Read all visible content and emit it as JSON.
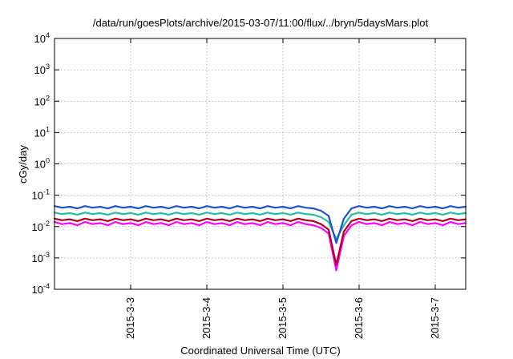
{
  "chart_data": {
    "type": "line",
    "title": "/data/run/goesPlots/archive/2015-03-07/11:00/flux/../bryn/5daysMars.plot",
    "xlabel": "Coordinated Universal Time (UTC)",
    "ylabel": "cGy/day",
    "y_scale": "log",
    "ylim": [
      0.0001,
      10000
    ],
    "xlim": [
      -1.0,
      4.4
    ],
    "grid": true,
    "x_ticks": [
      {
        "value": 0,
        "label": "2015-3-3"
      },
      {
        "value": 1,
        "label": "2015-3-4"
      },
      {
        "value": 2,
        "label": "2015-3-5"
      },
      {
        "value": 3,
        "label": "2015-3-6"
      },
      {
        "value": 4,
        "label": "2015-3-7"
      }
    ],
    "y_ticks": [
      {
        "value": 0.0001,
        "base": "10",
        "exp": "-4"
      },
      {
        "value": 0.001,
        "base": "10",
        "exp": "-3"
      },
      {
        "value": 0.01,
        "base": "10",
        "exp": "-2"
      },
      {
        "value": 0.1,
        "base": "10",
        "exp": "-1"
      },
      {
        "value": 1,
        "base": "10",
        "exp": "0"
      },
      {
        "value": 10,
        "base": "10",
        "exp": "1"
      },
      {
        "value": 100,
        "base": "10",
        "exp": "2"
      },
      {
        "value": 1000,
        "base": "10",
        "exp": "3"
      },
      {
        "value": 10000,
        "base": "10",
        "exp": "4"
      }
    ],
    "x": [
      -1.0,
      -0.9,
      -0.8,
      -0.7,
      -0.6,
      -0.5,
      -0.4,
      -0.3,
      -0.2,
      -0.1,
      0.0,
      0.1,
      0.2,
      0.3,
      0.4,
      0.5,
      0.6,
      0.7,
      0.8,
      0.9,
      1.0,
      1.1,
      1.2,
      1.3,
      1.4,
      1.5,
      1.6,
      1.7,
      1.8,
      1.9,
      2.0,
      2.1,
      2.2,
      2.3,
      2.4,
      2.5,
      2.6,
      2.7,
      2.8,
      2.9,
      3.0,
      3.1,
      3.2,
      3.3,
      3.4,
      3.5,
      3.6,
      3.7,
      3.8,
      3.9,
      4.0,
      4.1,
      4.2,
      4.3,
      4.4
    ],
    "series": [
      {
        "color": "#ff00ff",
        "values": [
          0.014,
          0.012,
          0.013,
          0.011,
          0.014,
          0.012,
          0.013,
          0.011,
          0.014,
          0.012,
          0.013,
          0.011,
          0.014,
          0.012,
          0.013,
          0.011,
          0.014,
          0.012,
          0.013,
          0.011,
          0.014,
          0.012,
          0.013,
          0.011,
          0.014,
          0.012,
          0.013,
          0.011,
          0.014,
          0.012,
          0.013,
          0.011,
          0.014,
          0.012,
          0.011,
          0.009,
          0.006,
          0.0004,
          0.005,
          0.011,
          0.014,
          0.012,
          0.013,
          0.011,
          0.014,
          0.012,
          0.013,
          0.011,
          0.014,
          0.012,
          0.013,
          0.011,
          0.014,
          0.012,
          0.013
        ]
      },
      {
        "color": "#b00020",
        "values": [
          0.018,
          0.016,
          0.017,
          0.015,
          0.018,
          0.016,
          0.017,
          0.015,
          0.018,
          0.016,
          0.017,
          0.015,
          0.018,
          0.016,
          0.017,
          0.015,
          0.018,
          0.016,
          0.017,
          0.015,
          0.018,
          0.016,
          0.017,
          0.015,
          0.018,
          0.016,
          0.017,
          0.015,
          0.018,
          0.016,
          0.017,
          0.015,
          0.018,
          0.016,
          0.015,
          0.012,
          0.008,
          0.0006,
          0.007,
          0.015,
          0.018,
          0.016,
          0.017,
          0.015,
          0.018,
          0.016,
          0.017,
          0.015,
          0.018,
          0.016,
          0.017,
          0.015,
          0.018,
          0.016,
          0.017
        ]
      },
      {
        "color": "#20c0a0",
        "values": [
          0.028,
          0.025,
          0.027,
          0.024,
          0.028,
          0.025,
          0.027,
          0.024,
          0.028,
          0.025,
          0.027,
          0.024,
          0.028,
          0.025,
          0.027,
          0.024,
          0.028,
          0.025,
          0.027,
          0.024,
          0.028,
          0.025,
          0.027,
          0.024,
          0.028,
          0.025,
          0.027,
          0.024,
          0.028,
          0.025,
          0.027,
          0.024,
          0.028,
          0.025,
          0.024,
          0.02,
          0.014,
          0.004,
          0.011,
          0.024,
          0.028,
          0.025,
          0.027,
          0.024,
          0.028,
          0.025,
          0.027,
          0.024,
          0.028,
          0.025,
          0.027,
          0.024,
          0.028,
          0.025,
          0.027
        ]
      },
      {
        "color": "#2050d0",
        "values": [
          0.045,
          0.04,
          0.043,
          0.038,
          0.045,
          0.04,
          0.043,
          0.038,
          0.045,
          0.04,
          0.043,
          0.038,
          0.045,
          0.04,
          0.043,
          0.038,
          0.045,
          0.04,
          0.043,
          0.038,
          0.045,
          0.04,
          0.043,
          0.038,
          0.045,
          0.04,
          0.043,
          0.038,
          0.045,
          0.04,
          0.043,
          0.038,
          0.045,
          0.04,
          0.038,
          0.032,
          0.022,
          0.003,
          0.018,
          0.038,
          0.045,
          0.04,
          0.043,
          0.038,
          0.045,
          0.04,
          0.043,
          0.038,
          0.045,
          0.04,
          0.043,
          0.038,
          0.045,
          0.04,
          0.043
        ]
      }
    ]
  }
}
